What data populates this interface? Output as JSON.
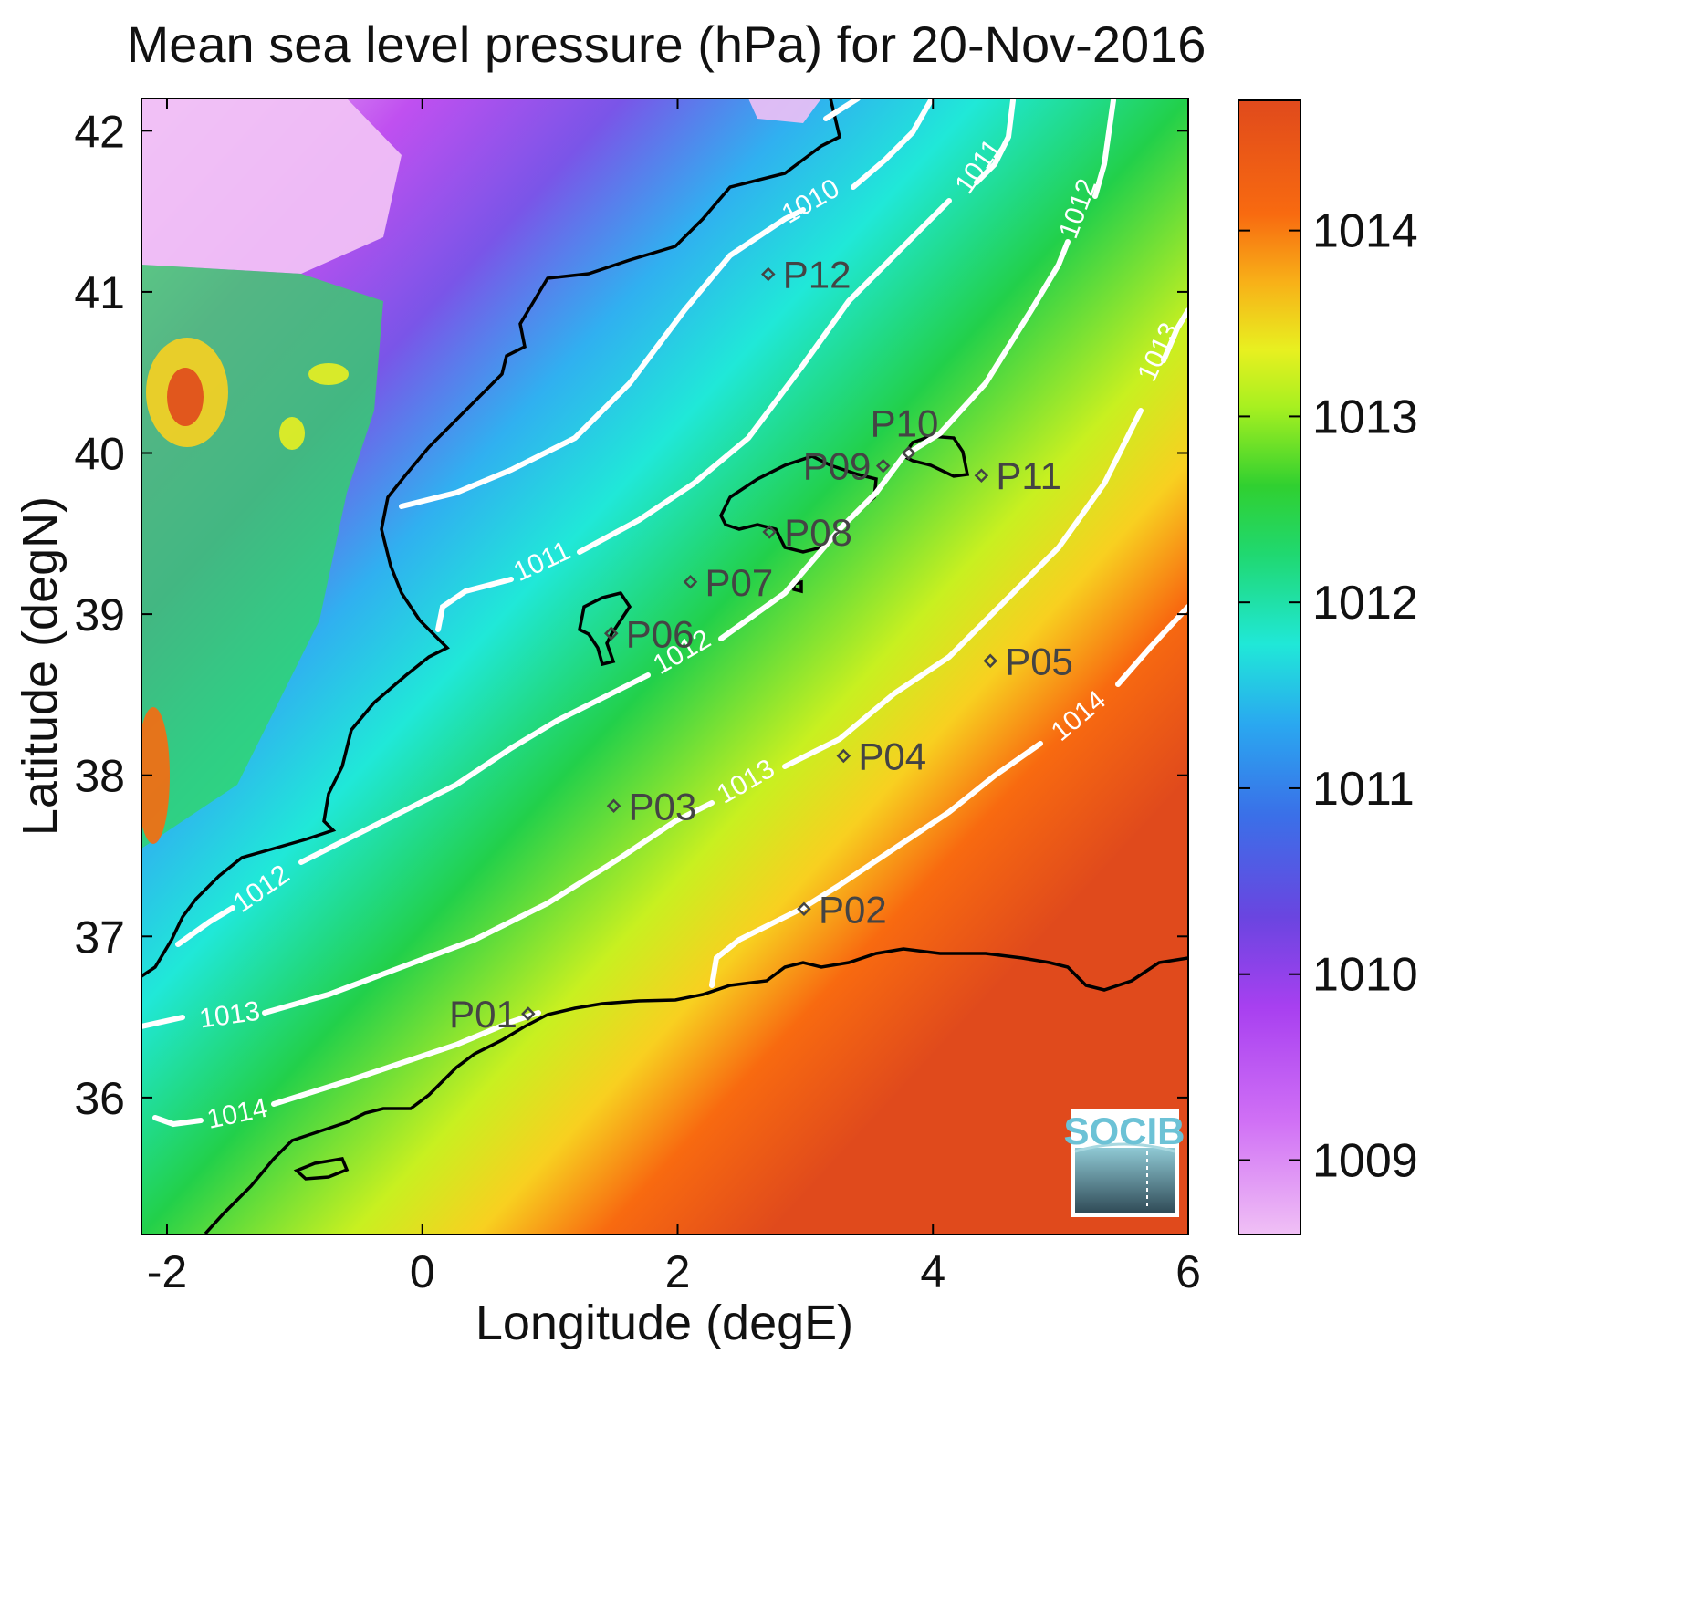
{
  "chart_data": {
    "type": "heatmap",
    "title": "Mean sea level pressure (hPa) for 20-Nov-2016",
    "xlabel": "Longitude (degE)",
    "ylabel": "Latitude (degN)",
    "xlim": [
      -2.2,
      6
    ],
    "ylim": [
      35.15,
      42.2
    ],
    "xticks": [
      -2,
      0,
      2,
      4,
      6
    ],
    "yticks": [
      36,
      37,
      38,
      39,
      40,
      41,
      42
    ],
    "colorbar": {
      "range": [
        1008.6,
        1014.7
      ],
      "ticks": [
        1009,
        1010,
        1011,
        1012,
        1013,
        1014
      ],
      "colors": [
        "#f0c0f5",
        "#c050f0",
        "#6a45e0",
        "#2aa8f0",
        "#20e8d8",
        "#20d040",
        "#c8f020",
        "#f8d020",
        "#f86a10",
        "#e04a1c"
      ]
    },
    "contours": [
      {
        "level": 1010,
        "label": "1010"
      },
      {
        "level": 1011,
        "label": "1011"
      },
      {
        "level": 1012,
        "label": "1012"
      },
      {
        "level": 1013,
        "label": "1013"
      },
      {
        "level": 1014,
        "label": "1014"
      }
    ],
    "stations": [
      {
        "name": "P01",
        "lon": 0.83,
        "lat": 36.52
      },
      {
        "name": "P02",
        "lon": 2.99,
        "lat": 37.17
      },
      {
        "name": "P03",
        "lon": 1.5,
        "lat": 37.81
      },
      {
        "name": "P04",
        "lon": 3.3,
        "lat": 38.12
      },
      {
        "name": "P05",
        "lon": 4.45,
        "lat": 38.71
      },
      {
        "name": "P06",
        "lon": 1.48,
        "lat": 38.88
      },
      {
        "name": "P07",
        "lon": 2.1,
        "lat": 39.2
      },
      {
        "name": "P08",
        "lon": 2.72,
        "lat": 39.51
      },
      {
        "name": "P09",
        "lon": 3.61,
        "lat": 39.92
      },
      {
        "name": "P10",
        "lon": 3.81,
        "lat": 40.0
      },
      {
        "name": "P11",
        "lon": 4.38,
        "lat": 39.86
      },
      {
        "name": "P12",
        "lon": 2.71,
        "lat": 41.11
      }
    ]
  },
  "logo": {
    "text": "SOCIB"
  }
}
